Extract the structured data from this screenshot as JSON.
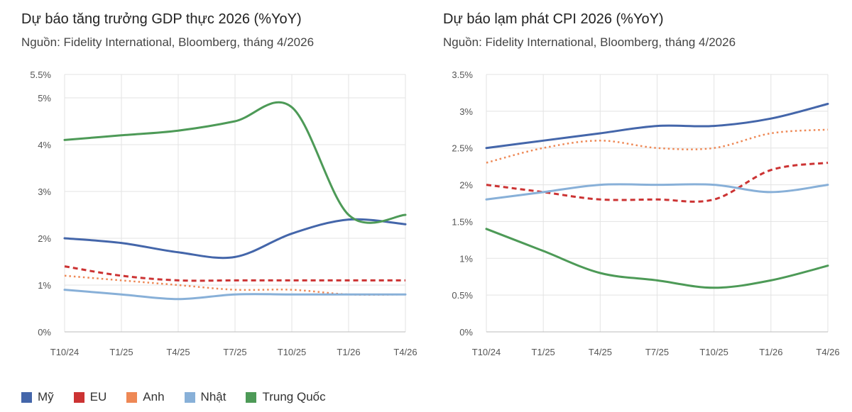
{
  "legend": [
    {
      "name": "Mỹ",
      "color": "#4466aa"
    },
    {
      "name": "EU",
      "color": "#cc3333"
    },
    {
      "name": "Anh",
      "color": "#ee8855"
    },
    {
      "name": "Nhật",
      "color": "#88b0d8"
    },
    {
      "name": "Trung Quốc",
      "color": "#4d9a57"
    }
  ],
  "chart_data": [
    {
      "type": "line",
      "title": "Dự báo tăng trưởng GDP thực 2026 (%YoY)",
      "subtitle": "Nguồn: Fidelity International, Bloomberg, tháng 4/2026",
      "x": [
        "T10/24",
        "T1/25",
        "T4/25",
        "T7/25",
        "T10/25",
        "T1/26",
        "T4/26"
      ],
      "yticks": [
        "0%",
        "1%",
        "2%",
        "3%",
        "4%",
        "5%",
        "5.5%"
      ],
      "ytick_values": [
        0,
        1,
        2,
        3,
        4,
        5,
        5.5
      ],
      "ylim": [
        0,
        5.5
      ],
      "grid": true,
      "series": [
        {
          "name": "Mỹ",
          "color": "#4466aa",
          "style": "solid",
          "values": [
            2.0,
            1.9,
            1.7,
            1.6,
            2.1,
            2.4,
            2.3
          ]
        },
        {
          "name": "EU",
          "color": "#cc3333",
          "style": "dashed",
          "values": [
            1.4,
            1.2,
            1.1,
            1.1,
            1.1,
            1.1,
            1.1
          ]
        },
        {
          "name": "Anh",
          "color": "#ee8855",
          "style": "dotted",
          "values": [
            1.2,
            1.1,
            1.0,
            0.9,
            0.9,
            0.8,
            0.8
          ]
        },
        {
          "name": "Nhật",
          "color": "#88b0d8",
          "style": "solid",
          "values": [
            0.9,
            0.8,
            0.7,
            0.8,
            0.8,
            0.8,
            0.8
          ]
        },
        {
          "name": "Trung Quốc",
          "color": "#4d9a57",
          "style": "solid",
          "values": [
            4.1,
            4.2,
            4.3,
            4.5,
            4.8,
            2.5,
            2.5
          ]
        }
      ]
    },
    {
      "type": "line",
      "title": "Dự báo lạm phát CPI 2026 (%YoY)",
      "subtitle": "Nguồn: Fidelity International, Bloomberg, tháng 4/2026",
      "x": [
        "T10/24",
        "T1/25",
        "T4/25",
        "T7/25",
        "T10/25",
        "T1/26",
        "T4/26"
      ],
      "yticks": [
        "0%",
        "0.5%",
        "1%",
        "1.5%",
        "2%",
        "2.5%",
        "3%",
        "3.5%"
      ],
      "ytick_values": [
        0,
        0.5,
        1,
        1.5,
        2,
        2.5,
        3,
        3.5
      ],
      "ylim": [
        0,
        3.5
      ],
      "grid": true,
      "series": [
        {
          "name": "Mỹ",
          "color": "#4466aa",
          "style": "solid",
          "values": [
            2.5,
            2.6,
            2.7,
            2.8,
            2.8,
            2.9,
            3.1
          ]
        },
        {
          "name": "EU",
          "color": "#cc3333",
          "style": "dashed",
          "values": [
            2.0,
            1.9,
            1.8,
            1.8,
            1.8,
            2.2,
            2.3
          ]
        },
        {
          "name": "Anh",
          "color": "#ee8855",
          "style": "dotted",
          "values": [
            2.3,
            2.5,
            2.6,
            2.5,
            2.5,
            2.7,
            2.75
          ]
        },
        {
          "name": "Nhật",
          "color": "#88b0d8",
          "style": "solid",
          "values": [
            1.8,
            1.9,
            2.0,
            2.0,
            2.0,
            1.9,
            2.0
          ]
        },
        {
          "name": "Trung Quốc",
          "color": "#4d9a57",
          "style": "solid",
          "values": [
            1.4,
            1.1,
            0.8,
            0.7,
            0.6,
            0.7,
            0.9
          ]
        }
      ]
    }
  ]
}
